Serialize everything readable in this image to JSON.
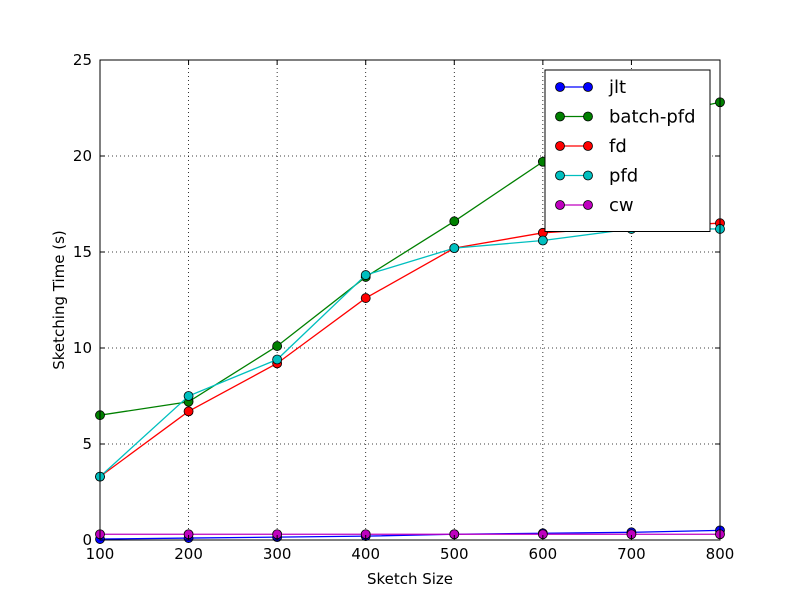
{
  "chart_data": {
    "type": "line",
    "title": "",
    "xlabel": "Sketch Size",
    "ylabel": "Sketching Time (s)",
    "xlim": [
      100,
      800
    ],
    "ylim": [
      0,
      25
    ],
    "x_ticks": [
      100,
      200,
      300,
      400,
      500,
      600,
      700,
      800
    ],
    "y_ticks": [
      0,
      5,
      10,
      15,
      20,
      25
    ],
    "grid": true,
    "legend_position": "top-right",
    "x": [
      100,
      200,
      300,
      400,
      500,
      600,
      700,
      800
    ],
    "series": [
      {
        "name": "jlt",
        "color": "#0000ff",
        "values": [
          0.05,
          0.1,
          0.15,
          0.2,
          0.3,
          0.35,
          0.4,
          0.5
        ]
      },
      {
        "name": "batch-pfd",
        "color": "#008000",
        "values": [
          6.5,
          7.2,
          10.1,
          13.7,
          16.6,
          19.7,
          21.8,
          22.8
        ]
      },
      {
        "name": "fd",
        "color": "#ff0000",
        "values": [
          3.3,
          6.7,
          9.2,
          12.6,
          15.2,
          16.0,
          16.3,
          16.5
        ]
      },
      {
        "name": "pfd",
        "color": "#00bfbf",
        "values": [
          3.3,
          7.5,
          9.4,
          13.8,
          15.2,
          15.6,
          16.2,
          16.2
        ]
      },
      {
        "name": "cw",
        "color": "#bf00bf",
        "values": [
          0.3,
          0.3,
          0.3,
          0.3,
          0.3,
          0.3,
          0.3,
          0.3
        ]
      }
    ]
  }
}
